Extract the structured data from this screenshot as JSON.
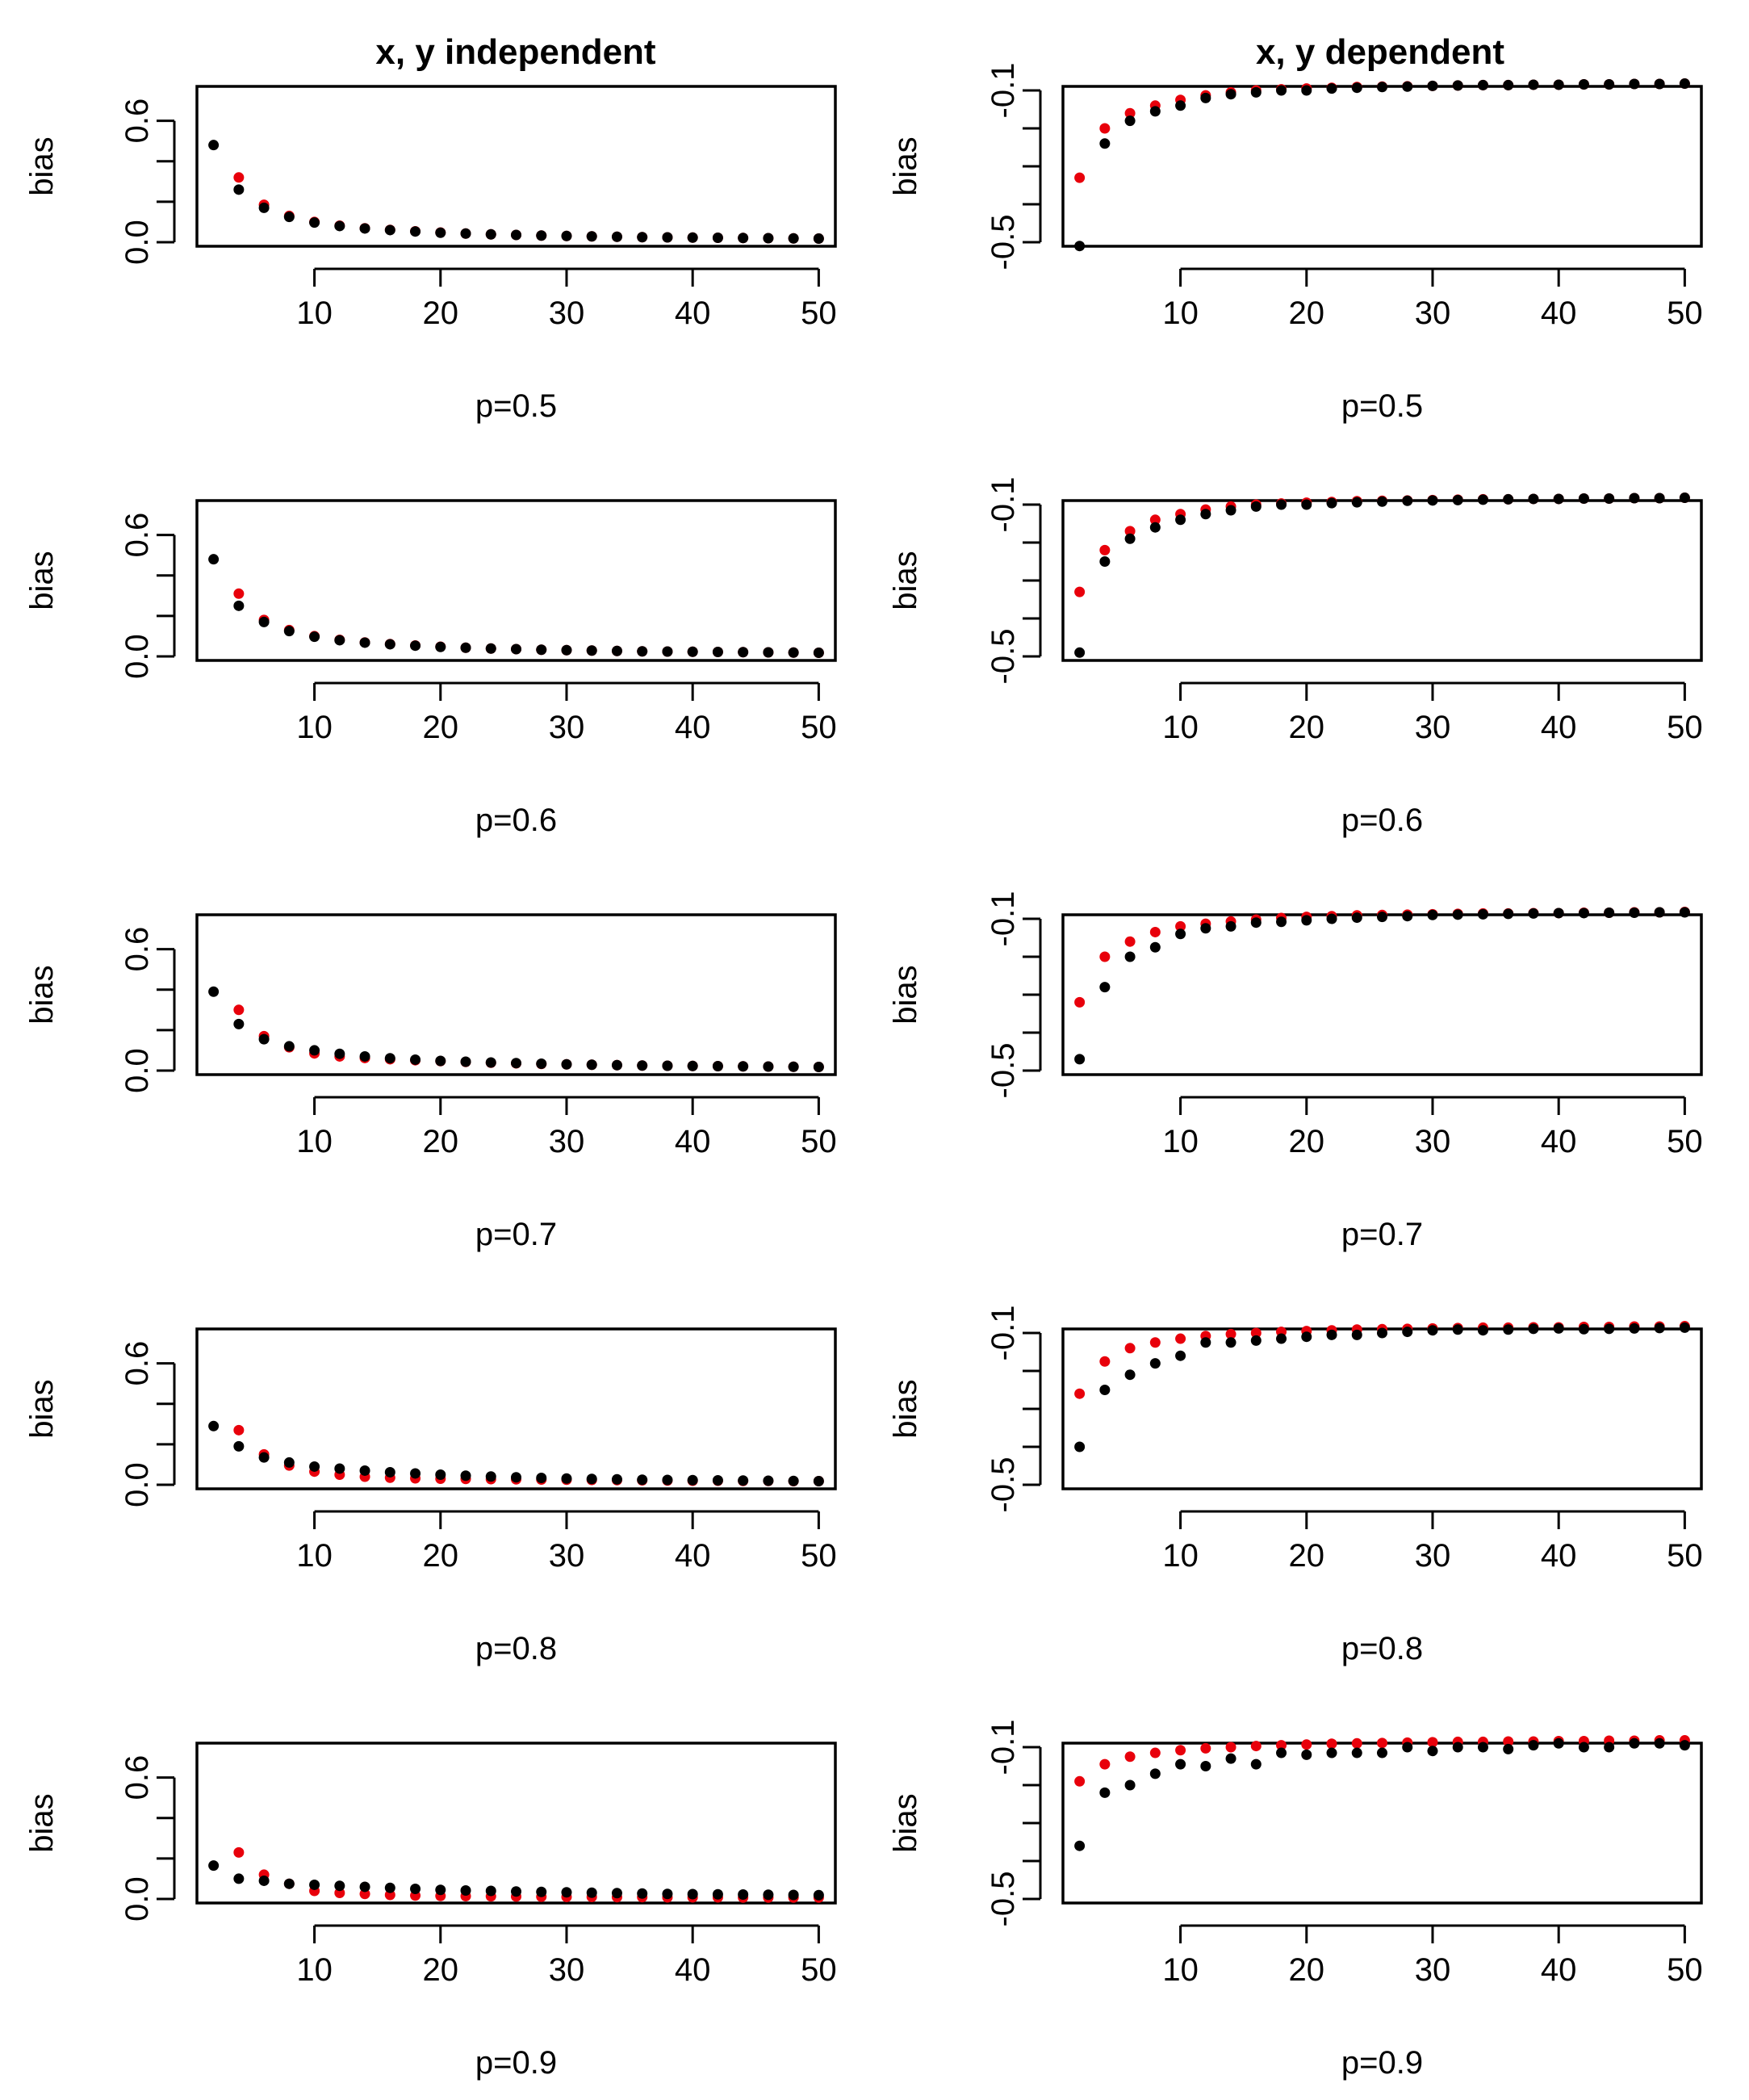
{
  "figure": {
    "column_titles": [
      "x, y independent",
      "x, y dependent"
    ],
    "colors": {
      "black_series": "#000000",
      "red_series": "#e8000b"
    }
  },
  "chart_data": [
    {
      "type": "scatter",
      "column": "x, y independent",
      "title": "",
      "xlabel": "p=0.5",
      "ylabel": "bias",
      "xlim": [
        1,
        51
      ],
      "ylim": [
        0,
        0.75
      ],
      "xticks": [
        10,
        20,
        30,
        40,
        50
      ],
      "yticks": [
        0,
        0.6
      ],
      "ytick_labels": [
        "0.0",
        "0.6"
      ],
      "x": [
        2,
        4,
        6,
        8,
        10,
        12,
        14,
        16,
        18,
        20,
        22,
        24,
        26,
        28,
        30,
        32,
        34,
        36,
        38,
        40,
        42,
        44,
        46,
        48,
        50
      ],
      "series": [
        {
          "name": "black",
          "values": [
            0.48,
            0.26,
            0.17,
            0.125,
            0.097,
            0.08,
            0.068,
            0.06,
            0.053,
            0.047,
            0.043,
            0.039,
            0.036,
            0.033,
            0.031,
            0.029,
            0.027,
            0.025,
            0.024,
            0.023,
            0.022,
            0.021,
            0.02,
            0.019,
            0.018
          ]
        },
        {
          "name": "red",
          "values": [
            null,
            0.32,
            0.185,
            0.13,
            0.1,
            0.082,
            0.069,
            0.061,
            0.054,
            0.048,
            0.043,
            0.039,
            0.036,
            0.033,
            0.031,
            0.029,
            0.027,
            0.025,
            0.024,
            0.023,
            0.022,
            0.021,
            0.02,
            0.019,
            0.018
          ]
        }
      ]
    },
    {
      "type": "scatter",
      "column": "x, y dependent",
      "title": "",
      "xlabel": "p=0.5",
      "ylabel": "bias",
      "xlim": [
        1,
        51
      ],
      "ylim": [
        -0.5,
        -0.1
      ],
      "xticks": [
        10,
        20,
        30,
        40,
        50
      ],
      "yticks": [
        -0.1,
        -0.5
      ],
      "ytick_labels": [
        "-0.1",
        "-0.5"
      ],
      "x": [
        2,
        4,
        6,
        8,
        10,
        12,
        14,
        16,
        18,
        20,
        22,
        24,
        26,
        28,
        30,
        32,
        34,
        36,
        38,
        40,
        42,
        44,
        46,
        48,
        50
      ],
      "series": [
        {
          "name": "black",
          "values": [
            -0.51,
            -0.24,
            -0.18,
            -0.155,
            -0.14,
            -0.12,
            -0.11,
            -0.105,
            -0.1,
            -0.1,
            -0.095,
            -0.093,
            -0.091,
            -0.09,
            -0.088,
            -0.087,
            -0.086,
            -0.086,
            -0.085,
            -0.085,
            -0.084,
            -0.084,
            -0.083,
            -0.083,
            -0.082
          ]
        },
        {
          "name": "red",
          "values": [
            -0.33,
            -0.2,
            -0.16,
            -0.14,
            -0.125,
            -0.113,
            -0.105,
            -0.1,
            -0.097,
            -0.095,
            -0.093,
            -0.091,
            -0.09,
            -0.089,
            -0.088,
            -0.087,
            -0.086,
            -0.086,
            -0.085,
            -0.085,
            -0.084,
            -0.084,
            -0.083,
            -0.083,
            -0.082
          ]
        }
      ]
    },
    {
      "type": "scatter",
      "column": "x, y independent",
      "title": "",
      "xlabel": "p=0.6",
      "ylabel": "bias",
      "xlim": [
        1,
        51
      ],
      "ylim": [
        0,
        0.75
      ],
      "xticks": [
        10,
        20,
        30,
        40,
        50
      ],
      "yticks": [
        0,
        0.6
      ],
      "ytick_labels": [
        "0.0",
        "0.6"
      ],
      "x": [
        2,
        4,
        6,
        8,
        10,
        12,
        14,
        16,
        18,
        20,
        22,
        24,
        26,
        28,
        30,
        32,
        34,
        36,
        38,
        40,
        42,
        44,
        46,
        48,
        50
      ],
      "series": [
        {
          "name": "black",
          "values": [
            0.48,
            0.25,
            0.17,
            0.125,
            0.097,
            0.08,
            0.068,
            0.06,
            0.053,
            0.047,
            0.043,
            0.039,
            0.036,
            0.033,
            0.031,
            0.029,
            0.027,
            0.025,
            0.024,
            0.023,
            0.022,
            0.021,
            0.02,
            0.019,
            0.018
          ]
        },
        {
          "name": "red",
          "values": [
            null,
            0.31,
            0.18,
            0.13,
            0.1,
            0.082,
            0.069,
            0.061,
            0.054,
            0.048,
            0.043,
            0.039,
            0.036,
            0.033,
            0.031,
            0.029,
            0.027,
            0.025,
            0.024,
            0.023,
            0.022,
            0.021,
            0.02,
            0.019,
            0.018
          ]
        }
      ]
    },
    {
      "type": "scatter",
      "column": "x, y dependent",
      "title": "",
      "xlabel": "p=0.6",
      "ylabel": "bias",
      "xlim": [
        1,
        51
      ],
      "ylim": [
        -0.5,
        -0.1
      ],
      "xticks": [
        10,
        20,
        30,
        40,
        50
      ],
      "yticks": [
        -0.1,
        -0.5
      ],
      "ytick_labels": [
        "-0.1",
        "-0.5"
      ],
      "x": [
        2,
        4,
        6,
        8,
        10,
        12,
        14,
        16,
        18,
        20,
        22,
        24,
        26,
        28,
        30,
        32,
        34,
        36,
        38,
        40,
        42,
        44,
        46,
        48,
        50
      ],
      "series": [
        {
          "name": "black",
          "values": [
            -0.49,
            -0.25,
            -0.19,
            -0.16,
            -0.14,
            -0.125,
            -0.115,
            -0.105,
            -0.1,
            -0.1,
            -0.096,
            -0.094,
            -0.092,
            -0.09,
            -0.089,
            -0.088,
            -0.087,
            -0.086,
            -0.085,
            -0.085,
            -0.084,
            -0.084,
            -0.083,
            -0.083,
            -0.082
          ]
        },
        {
          "name": "red",
          "values": [
            -0.33,
            -0.22,
            -0.17,
            -0.14,
            -0.125,
            -0.113,
            -0.105,
            -0.1,
            -0.097,
            -0.095,
            -0.093,
            -0.091,
            -0.09,
            -0.089,
            -0.088,
            -0.087,
            -0.086,
            -0.086,
            -0.085,
            -0.085,
            -0.084,
            -0.084,
            -0.083,
            -0.083,
            -0.082
          ]
        }
      ]
    },
    {
      "type": "scatter",
      "column": "x, y independent",
      "title": "",
      "xlabel": "p=0.7",
      "ylabel": "bias",
      "xlim": [
        1,
        51
      ],
      "ylim": [
        0,
        0.75
      ],
      "xticks": [
        10,
        20,
        30,
        40,
        50
      ],
      "yticks": [
        0,
        0.6
      ],
      "ytick_labels": [
        "0.0",
        "0.6"
      ],
      "x": [
        2,
        4,
        6,
        8,
        10,
        12,
        14,
        16,
        18,
        20,
        22,
        24,
        26,
        28,
        30,
        32,
        34,
        36,
        38,
        40,
        42,
        44,
        46,
        48,
        50
      ],
      "series": [
        {
          "name": "black",
          "values": [
            0.39,
            0.23,
            0.155,
            0.12,
            0.1,
            0.083,
            0.07,
            0.061,
            0.054,
            0.048,
            0.044,
            0.04,
            0.037,
            0.034,
            0.031,
            0.029,
            0.027,
            0.025,
            0.024,
            0.023,
            0.022,
            0.021,
            0.02,
            0.019,
            0.018
          ]
        },
        {
          "name": "red",
          "values": [
            null,
            0.3,
            0.17,
            0.115,
            0.085,
            0.07,
            0.062,
            0.056,
            0.051,
            0.047,
            0.043,
            0.039,
            0.036,
            0.033,
            0.031,
            0.029,
            0.027,
            0.025,
            0.024,
            0.023,
            0.022,
            0.021,
            0.02,
            0.019,
            0.018
          ]
        }
      ]
    },
    {
      "type": "scatter",
      "column": "x, y dependent",
      "title": "",
      "xlabel": "p=0.7",
      "ylabel": "bias",
      "xlim": [
        1,
        51
      ],
      "ylim": [
        -0.5,
        -0.1
      ],
      "xticks": [
        10,
        20,
        30,
        40,
        50
      ],
      "yticks": [
        -0.1,
        -0.5
      ],
      "ytick_labels": [
        "-0.1",
        "-0.5"
      ],
      "x": [
        2,
        4,
        6,
        8,
        10,
        12,
        14,
        16,
        18,
        20,
        22,
        24,
        26,
        28,
        30,
        32,
        34,
        36,
        38,
        40,
        42,
        44,
        46,
        48,
        50
      ],
      "series": [
        {
          "name": "black",
          "values": [
            -0.47,
            -0.28,
            -0.2,
            -0.175,
            -0.14,
            -0.125,
            -0.12,
            -0.11,
            -0.108,
            -0.104,
            -0.1,
            -0.097,
            -0.095,
            -0.093,
            -0.09,
            -0.089,
            -0.088,
            -0.087,
            -0.086,
            -0.085,
            -0.085,
            -0.084,
            -0.084,
            -0.083,
            -0.083
          ]
        },
        {
          "name": "red",
          "values": [
            -0.32,
            -0.2,
            -0.16,
            -0.135,
            -0.12,
            -0.113,
            -0.107,
            -0.102,
            -0.098,
            -0.095,
            -0.093,
            -0.091,
            -0.09,
            -0.089,
            -0.088,
            -0.087,
            -0.086,
            -0.086,
            -0.085,
            -0.085,
            -0.084,
            -0.084,
            -0.083,
            -0.083,
            -0.082
          ]
        }
      ]
    },
    {
      "type": "scatter",
      "column": "x, y independent",
      "title": "",
      "xlabel": "p=0.8",
      "ylabel": "bias",
      "xlim": [
        1,
        51
      ],
      "ylim": [
        0,
        0.75
      ],
      "xticks": [
        10,
        20,
        30,
        40,
        50
      ],
      "yticks": [
        0,
        0.6
      ],
      "ytick_labels": [
        "0.0",
        "0.6"
      ],
      "x": [
        2,
        4,
        6,
        8,
        10,
        12,
        14,
        16,
        18,
        20,
        22,
        24,
        26,
        28,
        30,
        32,
        34,
        36,
        38,
        40,
        42,
        44,
        46,
        48,
        50
      ],
      "series": [
        {
          "name": "black",
          "values": [
            0.29,
            0.19,
            0.135,
            0.11,
            0.09,
            0.08,
            0.07,
            0.062,
            0.056,
            0.05,
            0.045,
            0.041,
            0.037,
            0.034,
            0.031,
            0.029,
            0.027,
            0.025,
            0.024,
            0.023,
            0.022,
            0.021,
            0.02,
            0.019,
            0.018
          ]
        },
        {
          "name": "red",
          "values": [
            null,
            0.27,
            0.15,
            0.095,
            0.065,
            0.05,
            0.04,
            0.035,
            0.032,
            0.03,
            0.029,
            0.028,
            0.027,
            0.026,
            0.025,
            0.024,
            0.023,
            0.022,
            0.021,
            0.02,
            0.02,
            0.019,
            0.019,
            0.018,
            0.018
          ]
        }
      ]
    },
    {
      "type": "scatter",
      "column": "x, y dependent",
      "title": "",
      "xlabel": "p=0.8",
      "ylabel": "bias",
      "xlim": [
        1,
        51
      ],
      "ylim": [
        -0.5,
        -0.1
      ],
      "xticks": [
        10,
        20,
        30,
        40,
        50
      ],
      "yticks": [
        -0.1,
        -0.5
      ],
      "ytick_labels": [
        "-0.1",
        "-0.5"
      ],
      "x": [
        2,
        4,
        6,
        8,
        10,
        12,
        14,
        16,
        18,
        20,
        22,
        24,
        26,
        28,
        30,
        32,
        34,
        36,
        38,
        40,
        42,
        44,
        46,
        48,
        50
      ],
      "series": [
        {
          "name": "black",
          "values": [
            -0.4,
            -0.25,
            -0.21,
            -0.18,
            -0.16,
            -0.125,
            -0.125,
            -0.12,
            -0.115,
            -0.11,
            -0.105,
            -0.105,
            -0.1,
            -0.097,
            -0.093,
            -0.091,
            -0.093,
            -0.091,
            -0.089,
            -0.088,
            -0.09,
            -0.089,
            -0.088,
            -0.087,
            -0.086
          ]
        },
        {
          "name": "red",
          "values": [
            -0.26,
            -0.175,
            -0.14,
            -0.125,
            -0.115,
            -0.108,
            -0.103,
            -0.1,
            -0.097,
            -0.095,
            -0.093,
            -0.091,
            -0.09,
            -0.089,
            -0.088,
            -0.087,
            -0.086,
            -0.086,
            -0.085,
            -0.085,
            -0.084,
            -0.084,
            -0.083,
            -0.083,
            -0.082
          ]
        }
      ]
    },
    {
      "type": "scatter",
      "column": "x, y independent",
      "title": "",
      "xlabel": "p=0.9",
      "ylabel": "bias",
      "xlim": [
        1,
        51
      ],
      "ylim": [
        0,
        0.75
      ],
      "xticks": [
        10,
        20,
        30,
        40,
        50
      ],
      "yticks": [
        0,
        0.6
      ],
      "ytick_labels": [
        "0.0",
        "0.6"
      ],
      "x": [
        2,
        4,
        6,
        8,
        10,
        12,
        14,
        16,
        18,
        20,
        22,
        24,
        26,
        28,
        30,
        32,
        34,
        36,
        38,
        40,
        42,
        44,
        46,
        48,
        50
      ],
      "series": [
        {
          "name": "black",
          "values": [
            0.165,
            0.1,
            0.09,
            0.075,
            0.07,
            0.065,
            0.06,
            0.055,
            0.05,
            0.045,
            0.042,
            0.04,
            0.037,
            0.035,
            0.033,
            0.031,
            0.029,
            0.027,
            0.025,
            0.024,
            0.023,
            0.022,
            0.021,
            0.02,
            0.019
          ]
        },
        {
          "name": "red",
          "values": [
            null,
            0.23,
            0.12,
            0.075,
            0.04,
            0.03,
            0.025,
            0.02,
            0.017,
            0.015,
            0.014,
            0.013,
            0.012,
            0.011,
            0.01,
            0.01,
            0.009,
            0.009,
            0.008,
            0.008,
            0.008,
            0.007,
            0.007,
            0.007,
            0.007
          ]
        }
      ]
    },
    {
      "type": "scatter",
      "column": "x, y dependent",
      "title": "",
      "xlabel": "p=0.9",
      "ylabel": "bias",
      "xlim": [
        1,
        51
      ],
      "ylim": [
        -0.5,
        -0.1
      ],
      "xticks": [
        10,
        20,
        30,
        40,
        50
      ],
      "yticks": [
        -0.1,
        -0.5
      ],
      "ytick_labels": [
        "-0.1",
        "-0.5"
      ],
      "x": [
        2,
        4,
        6,
        8,
        10,
        12,
        14,
        16,
        18,
        20,
        22,
        24,
        26,
        28,
        30,
        32,
        34,
        36,
        38,
        40,
        42,
        44,
        46,
        48,
        50
      ],
      "series": [
        {
          "name": "black",
          "values": [
            -0.36,
            -0.22,
            -0.2,
            -0.17,
            -0.145,
            -0.15,
            -0.13,
            -0.145,
            -0.115,
            -0.12,
            -0.115,
            -0.115,
            -0.115,
            -0.1,
            -0.11,
            -0.1,
            -0.1,
            -0.105,
            -0.095,
            -0.09,
            -0.1,
            -0.1,
            -0.09,
            -0.09,
            -0.095
          ]
        },
        {
          "name": "red",
          "values": [
            -0.19,
            -0.145,
            -0.125,
            -0.115,
            -0.108,
            -0.103,
            -0.1,
            -0.097,
            -0.095,
            -0.093,
            -0.091,
            -0.09,
            -0.089,
            -0.088,
            -0.087,
            -0.086,
            -0.086,
            -0.085,
            -0.085,
            -0.084,
            -0.084,
            -0.083,
            -0.083,
            -0.082,
            -0.082
          ]
        }
      ]
    }
  ]
}
